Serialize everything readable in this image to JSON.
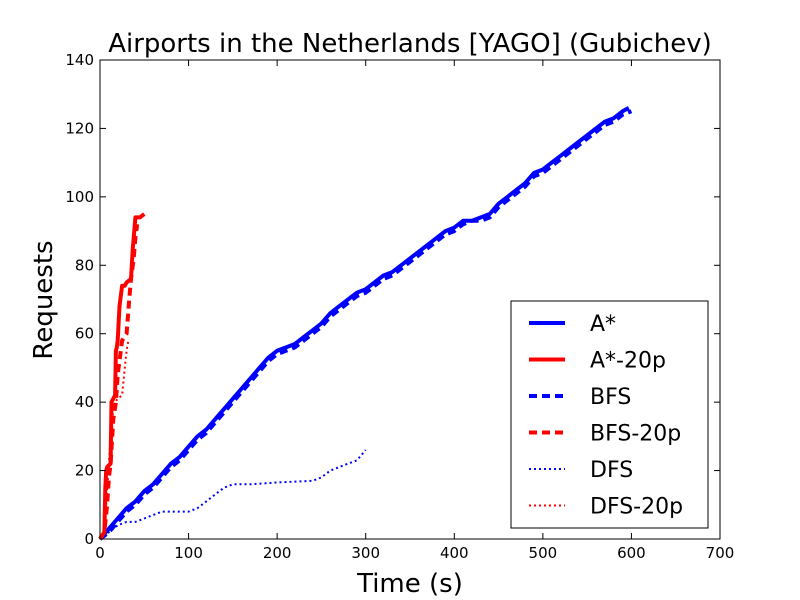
{
  "chart_data": {
    "type": "line",
    "title": "Airports in the Netherlands [YAGO] (Gubichev)",
    "xlabel": "Time (s)",
    "ylabel": "Requests",
    "xlim": [
      0,
      700
    ],
    "ylim": [
      0,
      140
    ],
    "xticks": [
      0,
      100,
      200,
      300,
      400,
      500,
      600,
      700
    ],
    "yticks": [
      0,
      20,
      40,
      60,
      80,
      100,
      120,
      140
    ],
    "xtick_labels": [
      "0",
      "100",
      "200",
      "300",
      "400",
      "500",
      "600",
      "700"
    ],
    "ytick_labels": [
      "0",
      "20",
      "40",
      "60",
      "80",
      "100",
      "120",
      "140"
    ],
    "grid": false,
    "legend_position": "bottom-right",
    "series": [
      {
        "name": "A*",
        "color": "#0000ff",
        "style": "solid",
        "x": [
          0,
          10,
          20,
          30,
          40,
          50,
          60,
          70,
          80,
          90,
          100,
          110,
          120,
          130,
          140,
          150,
          160,
          170,
          180,
          190,
          200,
          210,
          220,
          230,
          240,
          250,
          260,
          270,
          280,
          290,
          300,
          310,
          320,
          330,
          340,
          350,
          360,
          370,
          380,
          390,
          400,
          410,
          420,
          430,
          440,
          450,
          460,
          470,
          480,
          490,
          500,
          510,
          520,
          530,
          540,
          550,
          560,
          570,
          580,
          590,
          597
        ],
        "y": [
          0,
          3,
          6,
          9,
          11,
          14,
          16,
          19,
          22,
          24,
          27,
          30,
          32,
          35,
          38,
          41,
          44,
          47,
          50,
          53,
          55,
          56,
          57,
          59,
          61,
          63,
          66,
          68,
          70,
          72,
          73,
          75,
          77,
          78,
          80,
          82,
          84,
          86,
          88,
          90,
          91,
          93,
          93,
          94,
          95,
          98,
          100,
          102,
          104,
          107,
          108,
          110,
          112,
          114,
          116,
          118,
          120,
          122,
          123,
          125,
          126
        ]
      },
      {
        "name": "A*-20p",
        "color": "#ff0000",
        "style": "solid",
        "x": [
          0,
          5,
          6,
          7,
          8,
          12,
          13,
          15,
          17,
          18,
          19,
          20,
          22,
          25,
          28,
          30,
          35,
          37,
          38,
          40,
          45,
          50
        ],
        "y": [
          0,
          2,
          15,
          20,
          21,
          22,
          40,
          41,
          42,
          55,
          56,
          58,
          68,
          74,
          74,
          75,
          76,
          85,
          88,
          94,
          94,
          95
        ]
      },
      {
        "name": "BFS",
        "color": "#0000ff",
        "style": "dashed",
        "x": [
          0,
          10,
          20,
          30,
          40,
          50,
          60,
          70,
          80,
          90,
          100,
          110,
          120,
          130,
          140,
          150,
          160,
          170,
          180,
          190,
          200,
          210,
          220,
          230,
          240,
          250,
          260,
          270,
          280,
          290,
          300,
          310,
          320,
          330,
          340,
          350,
          360,
          370,
          380,
          390,
          400,
          410,
          420,
          430,
          440,
          450,
          460,
          470,
          480,
          490,
          500,
          510,
          520,
          530,
          540,
          550,
          560,
          570,
          580,
          590,
          600
        ],
        "y": [
          0,
          2,
          5,
          8,
          10,
          13,
          15,
          18,
          21,
          23,
          26,
          29,
          31,
          34,
          37,
          40,
          43,
          46,
          49,
          52,
          54,
          55,
          56,
          58,
          60,
          62,
          65,
          67,
          69,
          71,
          72,
          74,
          76,
          77,
          79,
          81,
          83,
          85,
          87,
          89,
          90,
          92,
          93,
          93,
          94,
          97,
          99,
          101,
          103,
          106,
          107,
          109,
          111,
          113,
          115,
          117,
          119,
          121,
          122,
          124,
          125
        ]
      },
      {
        "name": "BFS-20p",
        "color": "#ff0000",
        "style": "dashed",
        "x": [
          0,
          5,
          8,
          10,
          12,
          15,
          18,
          20,
          25,
          30,
          33,
          35,
          38,
          40,
          42
        ],
        "y": [
          0,
          2,
          10,
          18,
          22,
          35,
          40,
          48,
          58,
          60,
          70,
          76,
          82,
          88,
          92
        ]
      },
      {
        "name": "DFS",
        "color": "#0000ff",
        "style": "dotted",
        "x": [
          0,
          10,
          20,
          30,
          40,
          50,
          60,
          70,
          80,
          90,
          100,
          110,
          120,
          130,
          140,
          150,
          170,
          200,
          240,
          250,
          260,
          270,
          280,
          290,
          300
        ],
        "y": [
          0,
          2,
          4,
          5,
          5,
          6,
          7,
          8,
          8,
          8,
          8,
          9,
          11,
          13,
          15,
          16,
          16,
          16.5,
          17,
          18,
          20,
          21,
          22,
          23,
          26
        ]
      },
      {
        "name": "DFS-20p",
        "color": "#ff0000",
        "style": "dotted",
        "x": [
          0,
          5,
          7,
          10,
          12,
          15,
          17,
          20,
          25,
          28,
          30,
          32
        ],
        "y": [
          0,
          3,
          10,
          22,
          30,
          38,
          40,
          41,
          42,
          50,
          55,
          58
        ]
      }
    ]
  }
}
